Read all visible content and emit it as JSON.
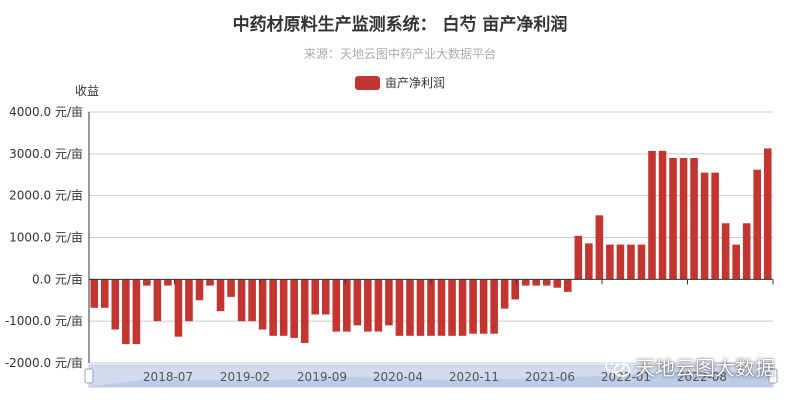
{
  "colors": {
    "bar": "#c23531",
    "axis": "#333333",
    "grid": "#cccccc",
    "zoom_fill": "#d2dbee",
    "zoom_border": "#c9ced9"
  },
  "watermark": {
    "text": "天地云图大数据",
    "icon": "wechat-icon"
  },
  "chart_data": {
    "type": "bar",
    "title": "中药材原料生产监测系统： 白芍 亩产净利润",
    "subtitle": "来源：天地云图中药产业大数据平台",
    "ylabel": "收益",
    "xlabel": "",
    "ylim": [
      -2000,
      4000
    ],
    "y_ticks": [
      4000,
      3000,
      2000,
      1000,
      0,
      -1000,
      -2000
    ],
    "y_tick_labels": [
      "4000.0 元/亩",
      "3000.0 元/亩",
      "2000.0 元/亩",
      "1000.0 元/亩",
      "0.0 元/亩",
      "-1000.0 元/亩",
      "-2000.0 元/亩"
    ],
    "x_tick_labels": [
      "2018-07",
      "2019-02",
      "2019-09",
      "2020-04",
      "2020-11",
      "2021-06",
      "2022-01",
      "2022-08"
    ],
    "legend_position": "top-center",
    "grid": true,
    "series": [
      {
        "name": "亩产净利润",
        "values": [
          -680,
          -680,
          -1200,
          -1550,
          -1550,
          -150,
          -1000,
          -150,
          -1370,
          -1000,
          -500,
          -150,
          -760,
          -420,
          -1000,
          -1000,
          -1200,
          -1350,
          -1350,
          -1400,
          -1520,
          -840,
          -840,
          -1250,
          -1250,
          -1100,
          -1250,
          -1250,
          -1100,
          -1350,
          -1350,
          -1350,
          -1350,
          -1350,
          -1350,
          -1350,
          -1300,
          -1300,
          -1300,
          -700,
          -480,
          -150,
          -150,
          -150,
          -200,
          -300,
          1040,
          860,
          1530,
          830,
          830,
          830,
          830,
          3070,
          3070,
          2900,
          2900,
          2900,
          2550,
          2550,
          1340,
          830,
          1340,
          2620,
          3130
        ]
      }
    ]
  }
}
